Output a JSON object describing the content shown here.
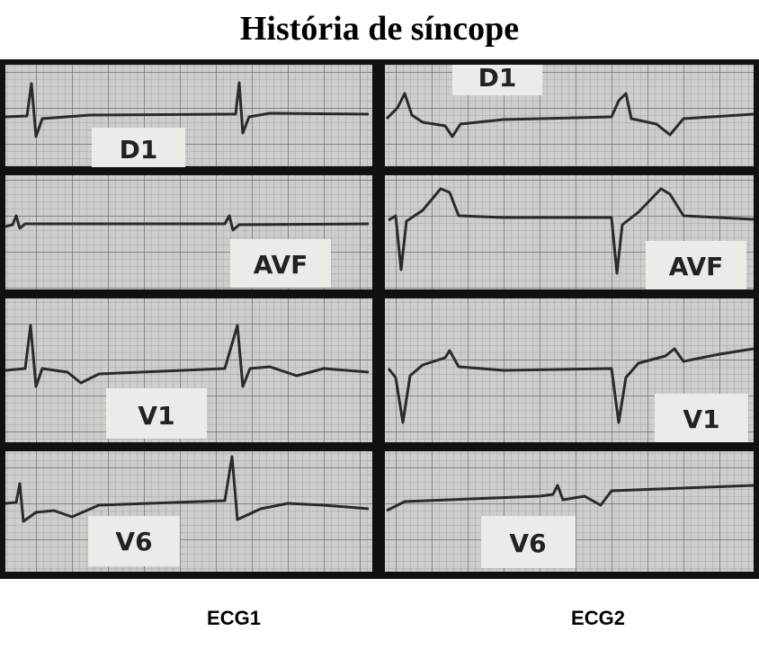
{
  "title": "História de síncope",
  "columns": [
    {
      "caption": "ECG1",
      "leads": [
        "D1",
        "AVF",
        "V1",
        "V6"
      ]
    },
    {
      "caption": "ECG2",
      "leads": [
        "D1",
        "AVF",
        "V1",
        "V6"
      ]
    }
  ]
}
